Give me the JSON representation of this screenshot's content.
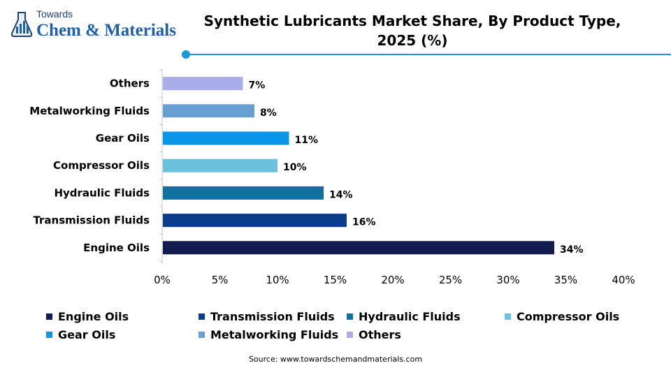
{
  "logo": {
    "line1": "Towards",
    "line2": "Chem & Materials"
  },
  "header": {
    "title_line1": "Synthetic Lubricants Market Share, By Product Type,",
    "title_line2": "2025 (%)",
    "accent_color": "#1a9bd7"
  },
  "chart_data": {
    "type": "bar",
    "orientation": "horizontal",
    "title": "Synthetic Lubricants Market Share, By Product Type, 2025 (%)",
    "categories": [
      "Engine Oils",
      "Transmission Fluids",
      "Hydraulic Fluids",
      "Compressor Oils",
      "Gear Oils",
      "Metalworking Fluids",
      "Others"
    ],
    "values": [
      34,
      16,
      14,
      10,
      11,
      8,
      7
    ],
    "data_labels": [
      "34%",
      "16%",
      "14%",
      "10%",
      "11%",
      "8%",
      "7%"
    ],
    "colors": [
      "#131c4f",
      "#0c3c8c",
      "#12709f",
      "#6cc1dc",
      "#0b95e6",
      "#679fd2",
      "#a9ade9"
    ],
    "xlim": [
      0,
      40
    ],
    "x_ticks": [
      "0%",
      "5%",
      "10%",
      "15%",
      "20%",
      "25%",
      "30%",
      "35%",
      "40%"
    ],
    "xlabel": "",
    "ylabel": "",
    "grid": false,
    "legend_position": "bottom"
  },
  "legend": {
    "items": [
      {
        "label": "Engine Oils",
        "color": "#131c4f"
      },
      {
        "label": "Transmission Fluids",
        "color": "#0c3c8c"
      },
      {
        "label": "Hydraulic Fluids",
        "color": "#12709f"
      },
      {
        "label": "Compressor Oils",
        "color": "#6cc1dc"
      },
      {
        "label": "Gear Oils",
        "color": "#0b95e6"
      },
      {
        "label": "Metalworking Fluids",
        "color": "#679fd2"
      },
      {
        "label": "Others",
        "color": "#a9ade9"
      }
    ]
  },
  "footer": {
    "source": "Source: www.towardschemandmaterials.com"
  }
}
